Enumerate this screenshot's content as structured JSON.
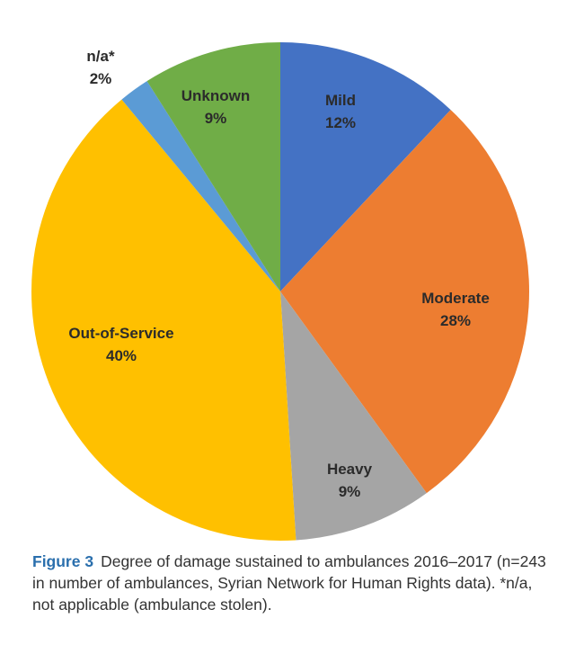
{
  "colors": {
    "mild": "#4472c4",
    "moderate": "#ed7d31",
    "heavy": "#a5a5a5",
    "out_of_service": "#ffc000",
    "na": "#5b9bd5",
    "unknown": "#70ad47",
    "caption_label": "#2a6fad"
  },
  "chart_data": {
    "type": "pie",
    "start_angle_deg": 0,
    "direction": "clockwise",
    "slices": [
      {
        "label": "Mild",
        "value": 12,
        "value_label": "12%",
        "color_key": "mild"
      },
      {
        "label": "Moderate",
        "value": 28,
        "value_label": "28%",
        "color_key": "moderate"
      },
      {
        "label": "Heavy",
        "value": 9,
        "value_label": "9%",
        "color_key": "heavy"
      },
      {
        "label": "Out-of-Service",
        "value": 40,
        "value_label": "40%",
        "color_key": "out_of_service"
      },
      {
        "label": "n/a*",
        "value": 2,
        "value_label": "2%",
        "color_key": "na"
      },
      {
        "label": "Unknown",
        "value": 9,
        "value_label": "9%",
        "color_key": "unknown"
      }
    ]
  },
  "caption": {
    "label": "Figure 3",
    "text": "Degree of damage sustained to ambulances 2016–2017 (n=243 in number of ambulances, Syrian Network for Human Rights data). *n/a, not applicable (ambulance stolen)."
  }
}
